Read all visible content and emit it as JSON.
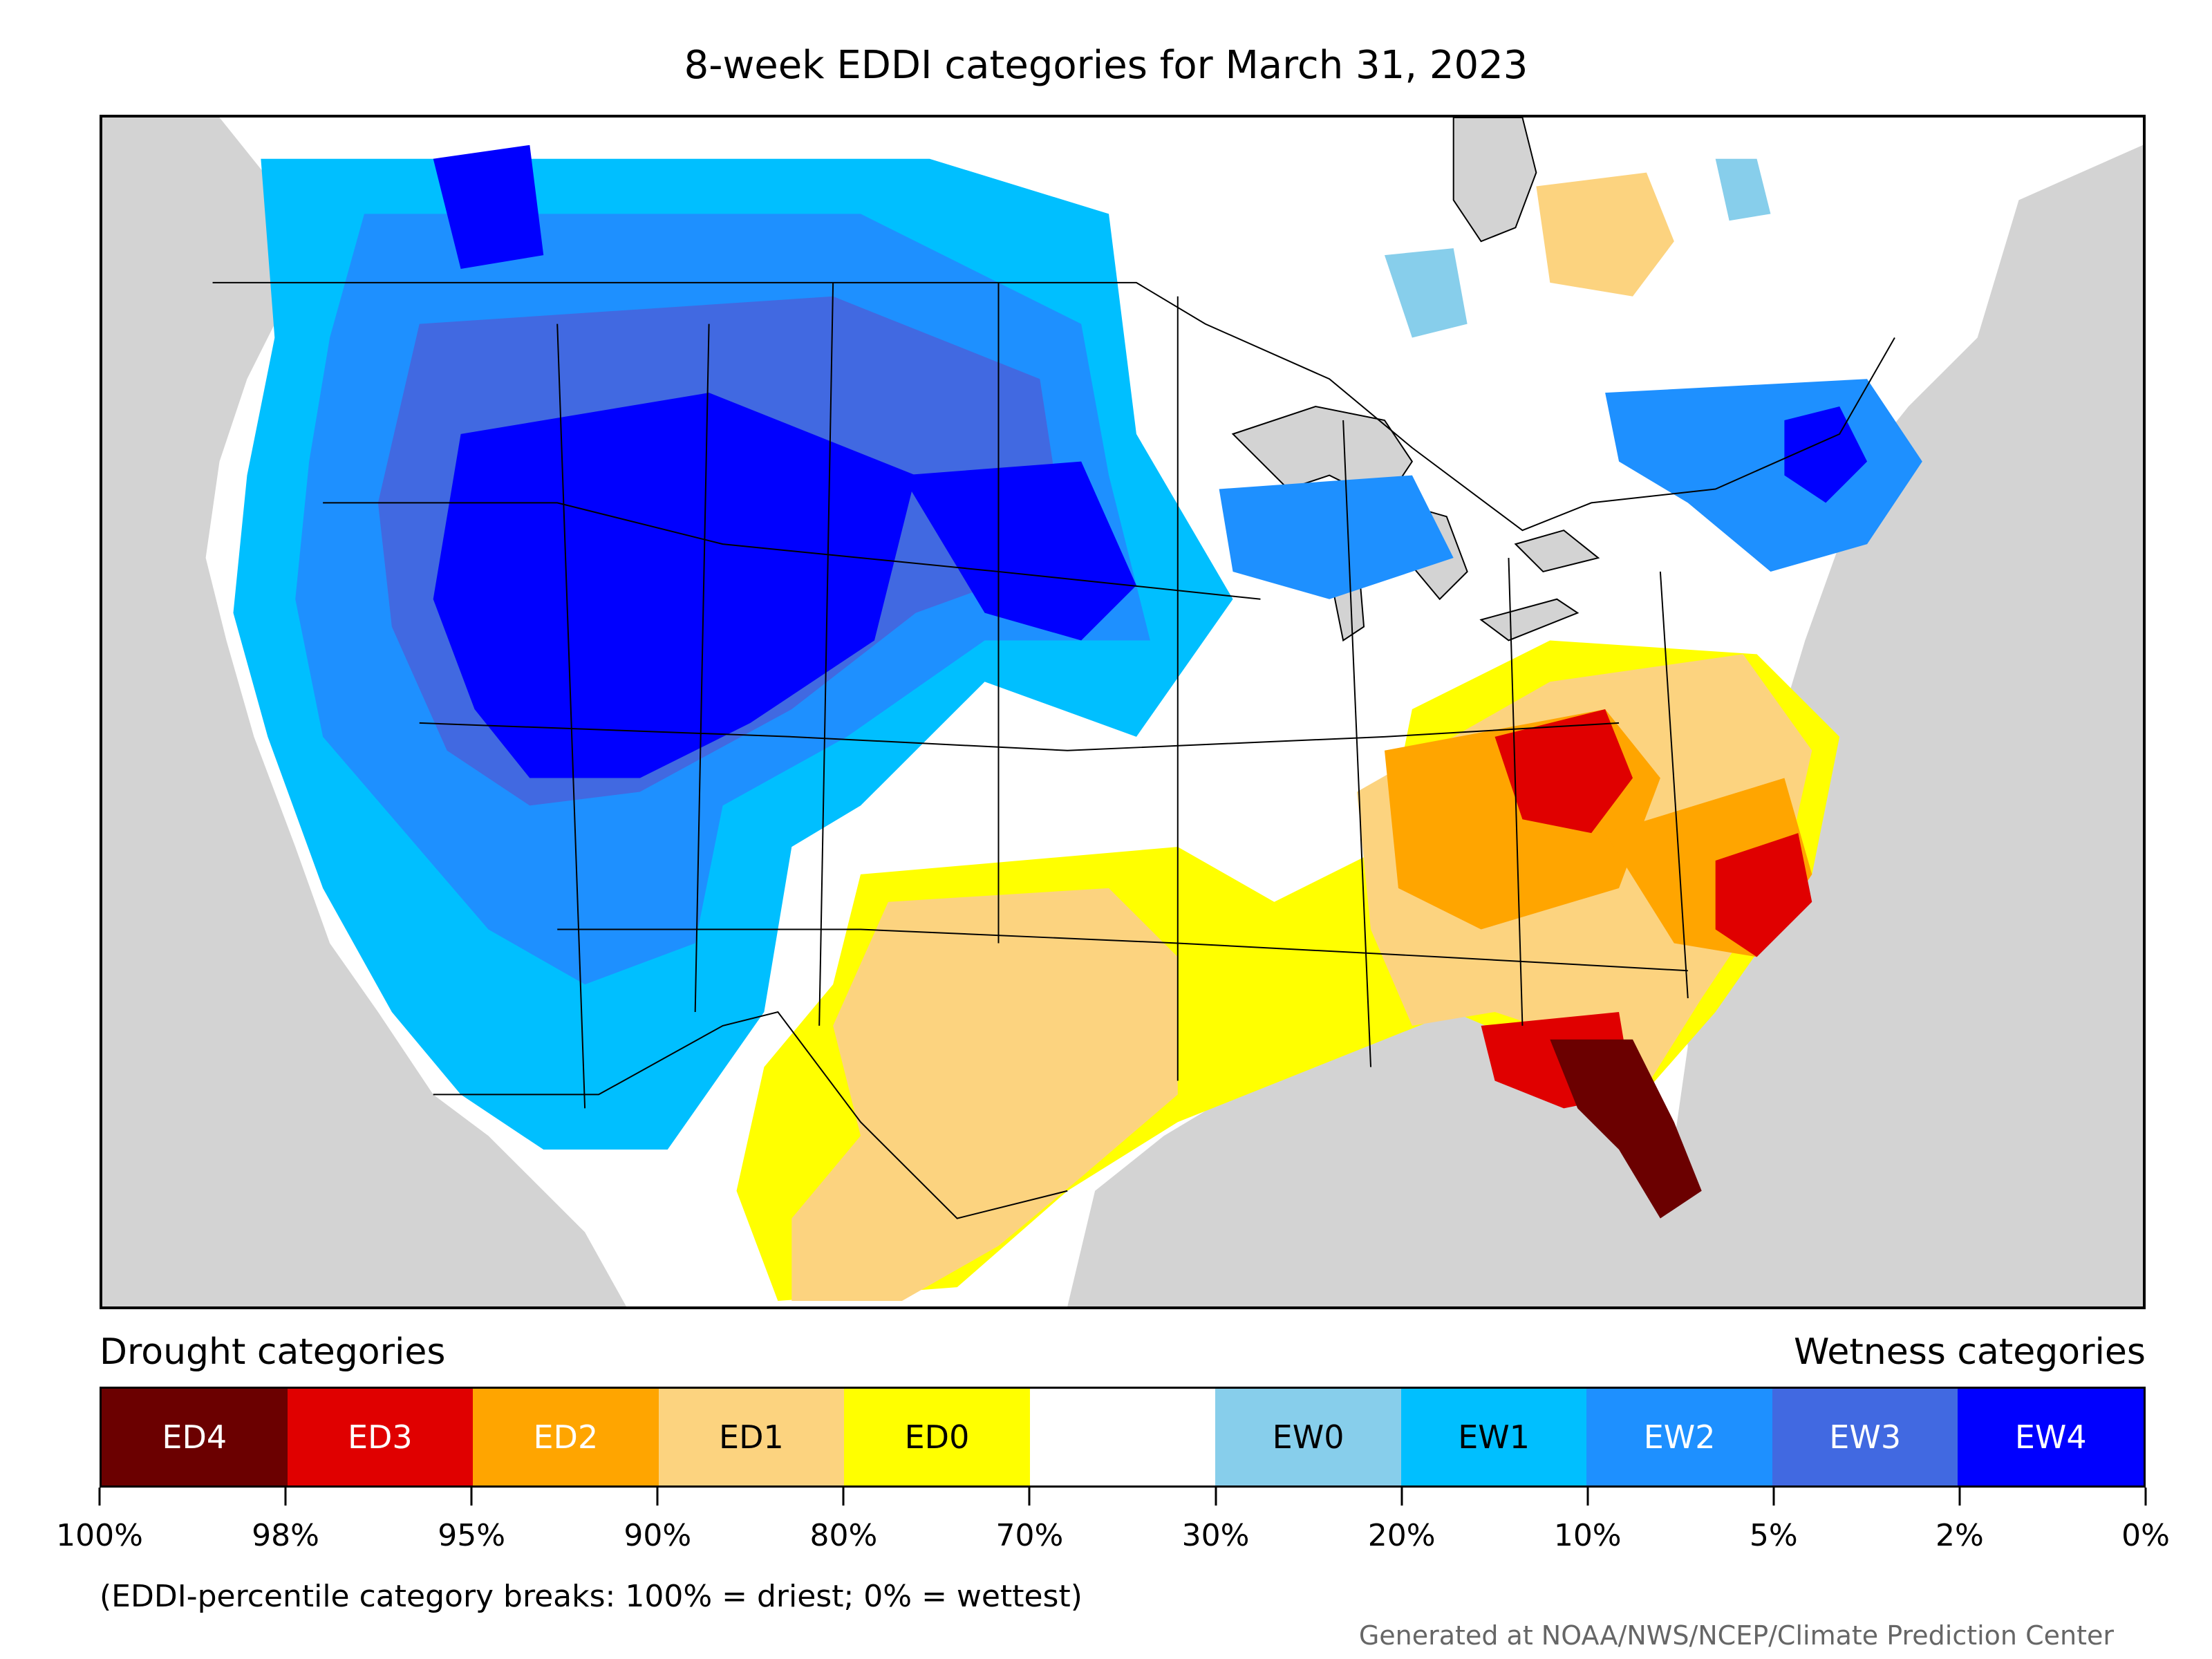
{
  "title": "8-week EDDI categories for March 31, 2023",
  "legend": {
    "drought_heading": "Drought categories",
    "wetness_heading": "Wetness categories",
    "categories": [
      {
        "label": "ED4",
        "color": "#6b0000",
        "text_color": "#ffffff"
      },
      {
        "label": "ED3",
        "color": "#e00000",
        "text_color": "#ffffff"
      },
      {
        "label": "ED2",
        "color": "#ffa500",
        "text_color": "#ffffff"
      },
      {
        "label": "ED1",
        "color": "#fcd37f",
        "text_color": "#000000"
      },
      {
        "label": "ED0",
        "color": "#ffff00",
        "text_color": "#000000"
      },
      {
        "label": "",
        "color": "#ffffff",
        "text_color": "#000000"
      },
      {
        "label": "EW0",
        "color": "#87ceeb",
        "text_color": "#000000"
      },
      {
        "label": "EW1",
        "color": "#00bfff",
        "text_color": "#000000"
      },
      {
        "label": "EW2",
        "color": "#1e90ff",
        "text_color": "#ffffff"
      },
      {
        "label": "EW3",
        "color": "#4169e1",
        "text_color": "#ffffff"
      },
      {
        "label": "EW4",
        "color": "#0000ff",
        "text_color": "#ffffff"
      }
    ],
    "tick_labels": [
      "100%",
      "98%",
      "95%",
      "90%",
      "80%",
      "70%",
      "30%",
      "20%",
      "10%",
      "5%",
      "2%",
      "0%"
    ],
    "note": "(EDDI-percentile category breaks: 100% = driest; 0% = wettest)"
  },
  "credit": "Generated at NOAA/NWS/NCEP/Climate Prediction Center",
  "map": {
    "ocean_color": "#d3d3d3",
    "land_color": "#ffffff",
    "region_notes": [
      {
        "area": "Northwest, Great Basin, Northern Rockies",
        "category": "EW4"
      },
      {
        "area": "Northern Plains",
        "category": "EW4"
      },
      {
        "area": "California / Southwest",
        "category": "EW2"
      },
      {
        "area": "Upper Midwest",
        "category": "EW2"
      },
      {
        "area": "New England / Quebec",
        "category": "EW2"
      },
      {
        "area": "Texas / Oklahoma",
        "category": "ED1"
      },
      {
        "area": "Ohio Valley",
        "category": "ED3"
      },
      {
        "area": "Carolinas",
        "category": "ED3"
      },
      {
        "area": "Florida / Southern Georgia",
        "category": "ED4"
      },
      {
        "area": "Southeast",
        "category": "ED1"
      },
      {
        "area": "Gulf Coast / Mid-South",
        "category": "ED0"
      }
    ]
  }
}
